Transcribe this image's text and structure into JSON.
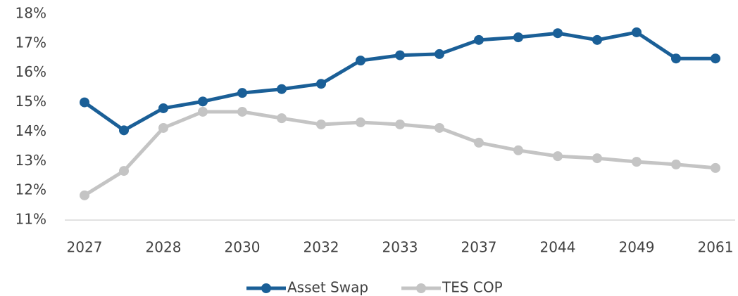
{
  "chart_data": {
    "type": "line",
    "categories": [
      "2027",
      null,
      "2028",
      null,
      "2030",
      null,
      "2032",
      null,
      "2033",
      null,
      "2037",
      null,
      "2044",
      null,
      "2049",
      null,
      "2061"
    ],
    "series": [
      {
        "name": "Asset Swap",
        "color": "#1a5f97",
        "values": [
          15.0,
          14.05,
          14.8,
          15.03,
          15.32,
          15.45,
          15.63,
          16.42,
          16.6,
          16.64,
          17.12,
          17.21,
          17.35,
          17.12,
          17.38,
          16.49,
          16.49
        ]
      },
      {
        "name": "TES COP",
        "color": "#c4c4c4",
        "values": [
          11.84,
          12.67,
          14.13,
          14.68,
          14.68,
          14.46,
          14.25,
          14.32,
          14.25,
          14.13,
          13.63,
          13.37,
          13.17,
          13.1,
          12.98,
          12.89,
          12.77
        ]
      }
    ],
    "ylim": [
      11,
      18
    ],
    "yticks": [
      {
        "value": 11,
        "label": "11%"
      },
      {
        "value": 12,
        "label": "12%"
      },
      {
        "value": 13,
        "label": "13%"
      },
      {
        "value": 14,
        "label": "14%"
      },
      {
        "value": 15,
        "label": "15%"
      },
      {
        "value": 16,
        "label": "16%"
      },
      {
        "value": 17,
        "label": "17%"
      },
      {
        "value": 18,
        "label": "18%"
      }
    ],
    "legend": "bottom"
  }
}
